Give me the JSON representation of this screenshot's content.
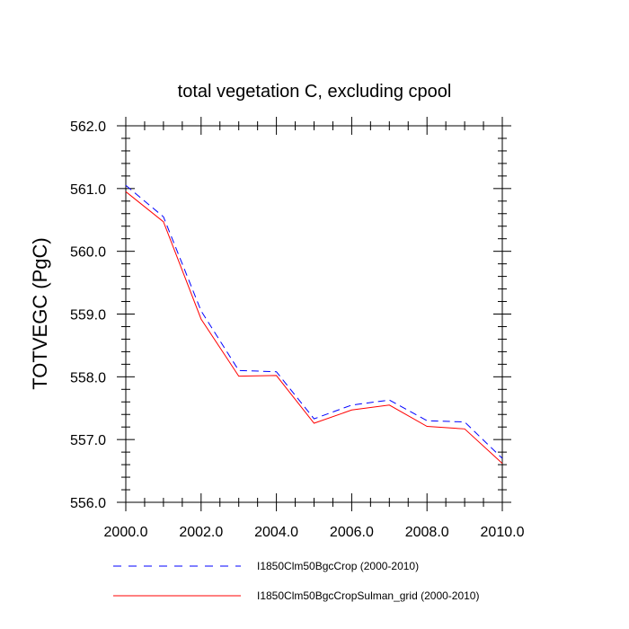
{
  "chart_data": {
    "type": "line",
    "title": "total vegetation C, excluding cpool",
    "xlabel": "",
    "ylabel": "TOTVEGC  (PgC)",
    "xlim": [
      2000,
      2010
    ],
    "ylim": [
      556.0,
      562.0
    ],
    "x_ticks": [
      "2000.0",
      "2002.0",
      "2004.0",
      "2006.0",
      "2008.0",
      "2010.0"
    ],
    "y_ticks": [
      "556.0",
      "557.0",
      "558.0",
      "559.0",
      "560.0",
      "561.0",
      "562.0"
    ],
    "grid": false,
    "legend_position": "bottom",
    "x": [
      2000,
      2001,
      2002,
      2003,
      2004,
      2005,
      2006,
      2007,
      2008,
      2009,
      2010
    ],
    "series": [
      {
        "name": "I1850Clm50BgcCrop (2000-2010)",
        "color": "#0000ff",
        "dash": "dashed",
        "values": [
          561.05,
          560.55,
          559.05,
          558.1,
          558.08,
          557.33,
          557.55,
          557.63,
          557.3,
          557.28,
          556.7
        ]
      },
      {
        "name": "I1850Clm50BgcCropSulman_grid (2000-2010)",
        "color": "#ff0000",
        "dash": "solid",
        "values": [
          560.95,
          560.47,
          558.92,
          558.01,
          558.02,
          557.26,
          557.47,
          557.55,
          557.21,
          557.17,
          556.62
        ]
      }
    ]
  }
}
